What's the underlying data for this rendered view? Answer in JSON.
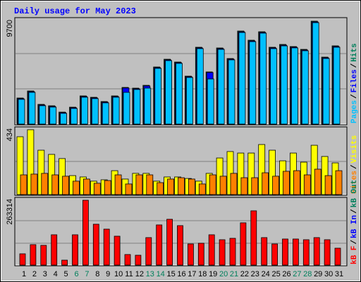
{
  "title": "Daily usage for May 2023",
  "legend_separator": "/",
  "chart_data": [
    {
      "type": "bar",
      "ylim": [
        0,
        9700
      ],
      "yticks": [
        9700
      ],
      "series": [
        {
          "name": "Hits",
          "color": "#00805c",
          "values": [
            2458,
            3123,
            1860,
            1727,
            1129,
            1594,
            2657,
            2525,
            2126,
            2657,
            3455,
            3388,
            3654,
            5382,
            6112,
            5847,
            4518,
            7242,
            4917,
            7175,
            6179,
            8770,
            7906,
            8704,
            7242,
            7508,
            7308,
            7042,
            9700,
            6312,
            7375
          ]
        },
        {
          "name": "Files",
          "color": "#0000ff",
          "values": [
            2400,
            3060,
            1800,
            1670,
            1080,
            1540,
            2600,
            2470,
            2070,
            2600,
            3400,
            3330,
            3590,
            5320,
            6050,
            5790,
            4460,
            7180,
            4860,
            7110,
            6120,
            8700,
            7840,
            8640,
            7180,
            7440,
            7250,
            6980,
            9630,
            6250,
            7310
          ]
        },
        {
          "name": "Pages",
          "color": "#00c0ff",
          "values": [
            2330,
            2990,
            1730,
            1600,
            1010,
            1470,
            2530,
            2400,
            2000,
            2530,
            2990,
            3260,
            3390,
            5250,
            5980,
            5720,
            4390,
            7110,
            4252,
            7040,
            6050,
            8630,
            7770,
            8570,
            7110,
            7370,
            7180,
            6910,
            9560,
            6180,
            7240
          ]
        }
      ]
    },
    {
      "type": "bar",
      "ylim": [
        0,
        434
      ],
      "yticks": [
        434
      ],
      "series": [
        {
          "name": "Visits",
          "color": "#ffff00",
          "values": [
            387,
            434,
            297,
            269,
            241,
            127,
            118,
            90,
            99,
            160,
            104,
            142,
            142,
            90,
            118,
            118,
            108,
            90,
            142,
            245,
            288,
            278,
            278,
            335,
            297,
            226,
            278,
            217,
            330,
            255,
            212
          ]
        },
        {
          "name": "Sites",
          "color": "#ff8000",
          "values": [
            132,
            137,
            142,
            132,
            123,
            90,
            104,
            76,
            94,
            132,
            71,
            132,
            132,
            80,
            104,
            113,
            104,
            71,
            132,
            123,
            142,
            113,
            113,
            146,
            123,
            156,
            160,
            132,
            170,
            127,
            160
          ]
        }
      ]
    },
    {
      "type": "bar",
      "ylim": [
        0,
        263314
      ],
      "yticks": [
        263314
      ],
      "categories": [
        "1",
        "2",
        "3",
        "4",
        "5",
        "6",
        "7",
        "8",
        "9",
        "10",
        "11",
        "12",
        "13",
        "14",
        "15",
        "16",
        "17",
        "18",
        "19",
        "20",
        "21",
        "22",
        "23",
        "24",
        "25",
        "26",
        "27",
        "28",
        "29",
        "30",
        "31"
      ],
      "category_colors": [
        "#000000",
        "#000000",
        "#000000",
        "#000000",
        "#000000",
        "#00805c",
        "#00805c",
        "#000000",
        "#000000",
        "#000000",
        "#000000",
        "#000000",
        "#00805c",
        "#00805c",
        "#000000",
        "#000000",
        "#000000",
        "#000000",
        "#000000",
        "#00805c",
        "#00805c",
        "#000000",
        "#000000",
        "#000000",
        "#000000",
        "#000000",
        "#00805c",
        "#00805c",
        "#000000",
        "#000000",
        "#000000"
      ],
      "series": [
        {
          "name": "kB F",
          "color": "#ff0000",
          "values": [
            45794,
            83000,
            80139,
            123070,
            20035,
            123070,
            263314,
            166003,
            145969,
            117346,
            42932,
            40070,
            111622,
            163141,
            186038,
            160279,
            85863,
            88725,
            123070,
            103036,
            108760,
            171727,
            220381,
            111622,
            85863,
            105898,
            105898,
            103036,
            111622,
            103036,
            68690
          ]
        }
      ],
      "legend_more": [
        {
          "name": "kB In",
          "color": "#0000ff"
        },
        {
          "name": "kB Out",
          "color": "#00805c"
        }
      ]
    }
  ]
}
